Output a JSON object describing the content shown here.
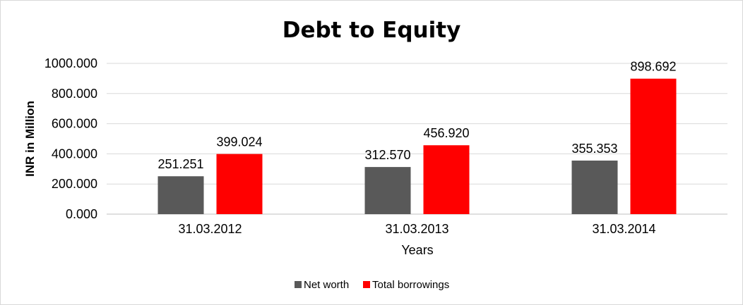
{
  "chart_data": {
    "type": "bar",
    "title": "Debt to Equity",
    "xlabel": "Years",
    "ylabel": "INR in Million",
    "categories": [
      "31.03.2012",
      "31.03.2013",
      "31.03.2014"
    ],
    "series": [
      {
        "name": "Net worth",
        "values": [
          251.251,
          312.57,
          355.353
        ],
        "labels": [
          "251.251",
          "312.570",
          "355.353"
        ],
        "color": "#595959"
      },
      {
        "name": "Total borrowings",
        "values": [
          399.024,
          456.92,
          898.692
        ],
        "labels": [
          "399.024",
          "456.920",
          "898.692"
        ],
        "color": "#ff0000"
      }
    ],
    "ylim": [
      0,
      1000
    ],
    "yticks": [
      "0.000",
      "200.000",
      "400.000",
      "600.000",
      "800.000",
      "1000.000"
    ],
    "grid": true,
    "legend_position": "bottom"
  }
}
